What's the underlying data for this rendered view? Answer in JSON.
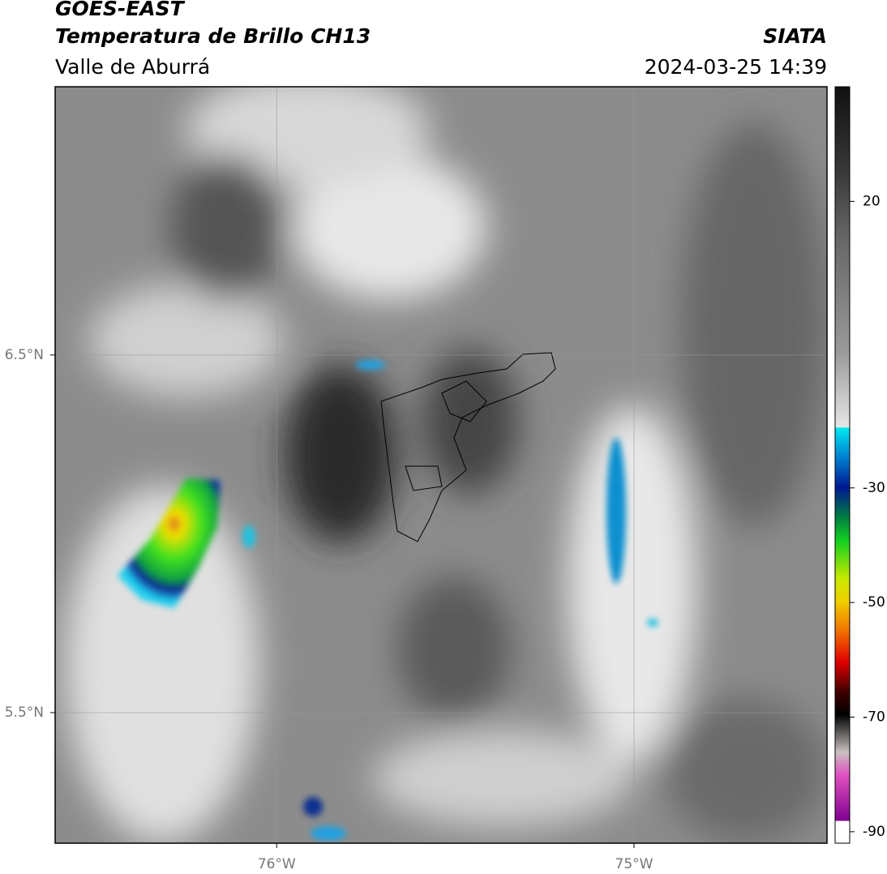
{
  "header": {
    "title": "GOES-EAST",
    "subtitle": "Temperatura de Brillo CH13",
    "region": "Valle de Aburrá",
    "source": "SIATA",
    "datetime": "2024-03-25 14:39"
  },
  "map": {
    "lat_range": [
      5.135,
      7.25
    ],
    "lon_range": [
      -76.62,
      -74.46
    ],
    "lat_ticks": [
      {
        "value": 6.5,
        "label": "6.5°N"
      },
      {
        "value": 5.5,
        "label": "5.5°N"
      }
    ],
    "lon_ticks": [
      {
        "value": -76,
        "label": "76°W"
      },
      {
        "value": -75,
        "label": "75°W"
      }
    ]
  },
  "colorbar": {
    "range": [
      -92,
      40
    ],
    "ticks": [
      20,
      -30,
      -50,
      -70,
      -90
    ]
  }
}
